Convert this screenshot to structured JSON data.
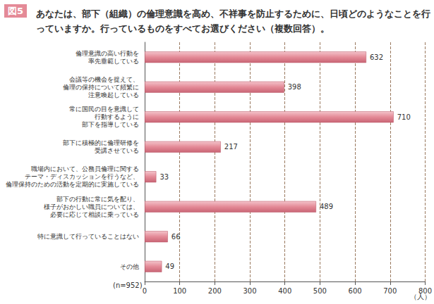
{
  "chart_data": {
    "type": "bar",
    "orientation": "horizontal",
    "title": "図5",
    "subtitle": "あなたは、部下（組織）の倫理意識を高め、不祥事を防止するために、日頃どのようなことを行っていますか。行っているものをすべてお選びください（複数回答）。",
    "xlabel": "（人）",
    "annotations": [
      "(n=952)"
    ],
    "categories": [
      "倫理意識の高い行動を\n率先垂範している",
      "会議等の機会を捉えて、\n倫理の保持について頻繁に\n注意喚起している",
      "常に国民の目を意識して\n行動するように\n部下を指導している",
      "部下に積極的に倫理研修を\n受講させている",
      "職場内において、公務員倫理に関する\nテーマ・ディスカッションを行うなど、\n倫理保持のための活動を定期的に実施している",
      "部下の行動に常に気を配り、\n様子がおかしい職員については、\n必要に応じて相談に乗っている",
      "特に意識して行っていることはない",
      "その他"
    ],
    "values": [
      632,
      398,
      710,
      217,
      33,
      489,
      66,
      49
    ],
    "color": "#e48a97",
    "xlim": [
      0,
      800
    ],
    "xticks": [
      0,
      100,
      200,
      300,
      400,
      500,
      600,
      700,
      800
    ],
    "grid": true,
    "data_labels": true
  }
}
